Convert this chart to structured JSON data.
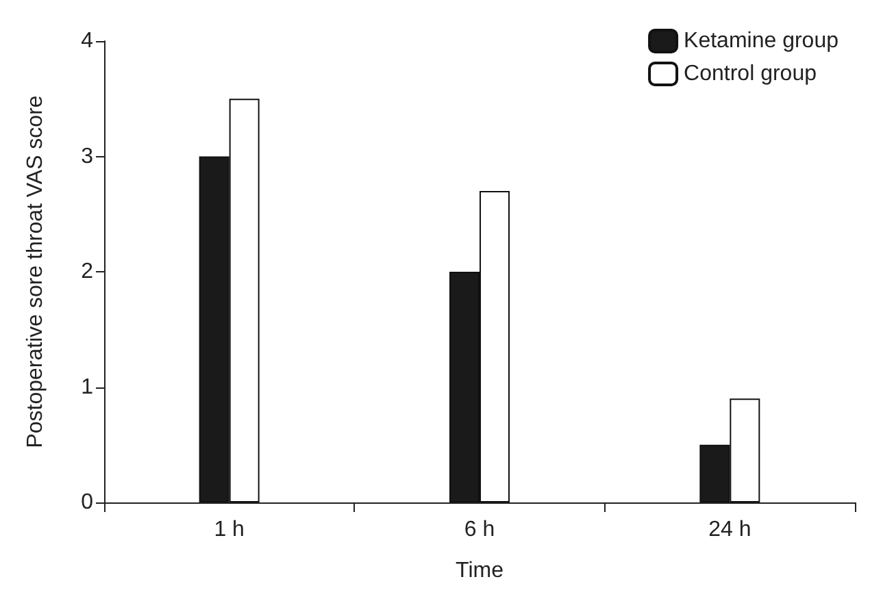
{
  "chart_data": {
    "type": "bar",
    "xlabel": "Time",
    "ylabel": "Postoperative sore throat VAS score",
    "categories": [
      "1 h",
      "6 h",
      "24 h"
    ],
    "series": [
      {
        "name": "Ketamine group",
        "color": "#1a1a1a",
        "values": [
          3,
          2,
          0.5
        ]
      },
      {
        "name": "Control group",
        "color": "#ffffff",
        "values": [
          3.5,
          2.7,
          0.9
        ]
      }
    ],
    "ylim": [
      0,
      4
    ],
    "yticks": [
      0,
      1,
      2,
      3,
      4
    ],
    "grid": false,
    "legend": "top right"
  }
}
